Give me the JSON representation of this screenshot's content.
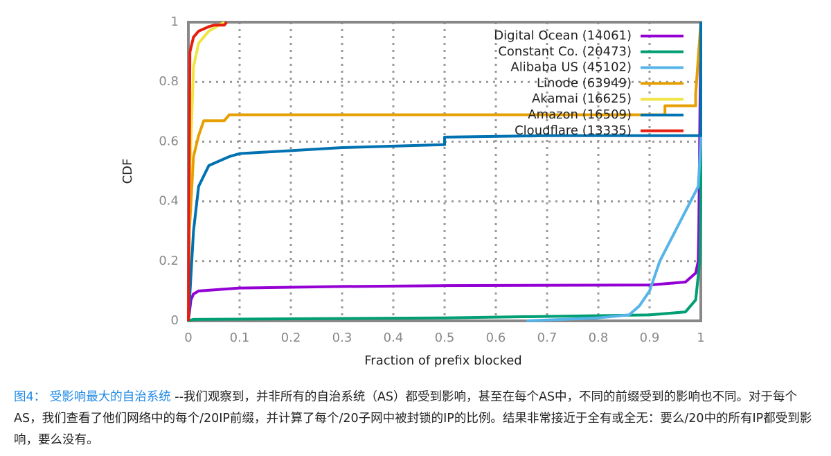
{
  "chart_data": {
    "type": "line",
    "xlabel": "Fraction of prefix blocked",
    "ylabel": "CDF",
    "xlim": [
      0,
      1
    ],
    "ylim": [
      0,
      1
    ],
    "xticks": [
      0,
      0.1,
      0.2,
      0.3,
      0.4,
      0.5,
      0.6,
      0.7,
      0.8,
      0.9,
      1
    ],
    "yticks": [
      0,
      0.2,
      0.4,
      0.6,
      0.8,
      1
    ],
    "grid": true,
    "legend": "top-right",
    "series": [
      {
        "name": "Digital Ocean (14061)",
        "color": "#9400d3",
        "x": [
          0,
          0.005,
          0.01,
          0.02,
          0.1,
          0.3,
          0.5,
          0.9,
          0.97,
          0.99,
          0.995,
          0.996,
          1
        ],
        "values": [
          0,
          0.07,
          0.09,
          0.1,
          0.11,
          0.115,
          0.118,
          0.12,
          0.13,
          0.16,
          0.2,
          0.29,
          1
        ]
      },
      {
        "name": "Constant Co. (20473)",
        "color": "#009e73",
        "x": [
          0,
          0.01,
          0.5,
          0.9,
          0.97,
          0.99,
          0.998,
          1,
          1
        ],
        "values": [
          0,
          0.005,
          0.01,
          0.02,
          0.03,
          0.07,
          0.2,
          0.43,
          1
        ]
      },
      {
        "name": "Alibaba US (45102)",
        "color": "#56b4e9",
        "x": [
          0.66,
          0.8,
          0.86,
          0.88,
          0.9,
          0.92,
          0.95,
          0.98,
          0.995,
          1,
          1
        ],
        "values": [
          0,
          0.01,
          0.02,
          0.05,
          0.1,
          0.2,
          0.3,
          0.4,
          0.45,
          0.6,
          1
        ]
      },
      {
        "name": "Linode (63949)",
        "color": "#e69f00",
        "x": [
          0,
          0.002,
          0.01,
          0.02,
          0.03,
          0.07,
          0.08,
          0.93,
          0.93,
          0.99,
          0.99,
          1
        ],
        "values": [
          0,
          0.3,
          0.55,
          0.62,
          0.67,
          0.67,
          0.69,
          0.69,
          0.72,
          0.72,
          0.76,
          1
        ]
      },
      {
        "name": "Akamai (16625)",
        "color": "#f0e442",
        "x": [
          0,
          0.003,
          0.01,
          0.02,
          0.04,
          0.07
        ],
        "values": [
          0,
          0.5,
          0.85,
          0.93,
          0.97,
          1
        ]
      },
      {
        "name": "Amazon (16509)",
        "color": "#0072b2",
        "x": [
          0,
          0.01,
          0.02,
          0.04,
          0.08,
          0.1,
          0.2,
          0.3,
          0.5,
          0.5,
          0.7,
          0.99,
          1,
          1
        ],
        "values": [
          0,
          0.3,
          0.45,
          0.52,
          0.55,
          0.56,
          0.57,
          0.58,
          0.59,
          0.615,
          0.62,
          0.62,
          0.62,
          1
        ]
      },
      {
        "name": "Cloudflare (13335)",
        "color": "#e51e10",
        "x": [
          0,
          0.003,
          0.01,
          0.02,
          0.04,
          0.05,
          0.07,
          0.075
        ],
        "values": [
          0,
          0.9,
          0.95,
          0.97,
          0.985,
          0.99,
          0.99,
          1
        ]
      }
    ]
  },
  "caption": {
    "label": "图4： 受影响最大的自治系统",
    "text": " --我们观察到，并非所有的自治系统（AS）都受到影响，甚至在每个AS中，不同的前缀受到的影响也不同。对于每个AS，我们查看了他们网络中的每个/20IP前缀，并计算了每个/20子网中被封锁的IP的比例。结果非常接近于全有或全无：要么/20中的所有IP都受到影响，要么没有。"
  }
}
